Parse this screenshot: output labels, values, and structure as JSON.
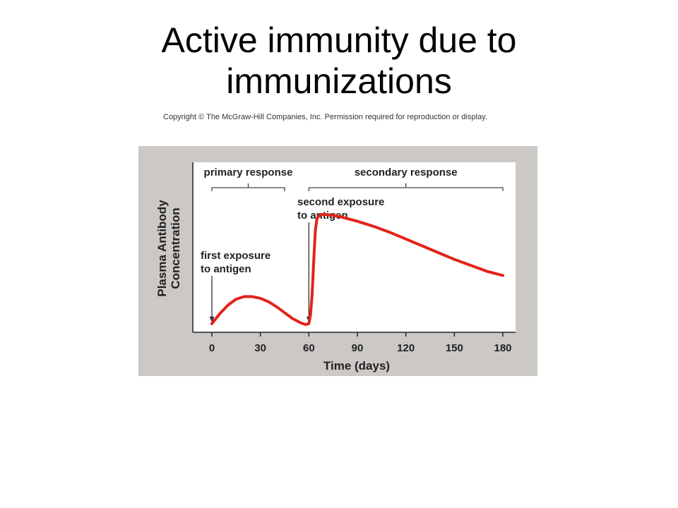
{
  "slide": {
    "title_line1": "Active immunity due to",
    "title_line2": "immunizations",
    "copyright": "Copyright © The McGraw-Hill Companies, Inc. Permission required for reproduction or display."
  },
  "colors": {
    "panel_background": "#cbc8c6",
    "plot_background": "#ffffff",
    "curve": "#e2231a",
    "text": "#222222"
  },
  "chart_data": {
    "type": "line",
    "title": "",
    "xlabel": "Time (days)",
    "ylabel_line1": "Plasma Antibody",
    "ylabel_line2": "Concentration",
    "xlim": [
      -10,
      188
    ],
    "ylim": [
      0,
      100
    ],
    "x_ticks": [
      0,
      30,
      60,
      90,
      120,
      150,
      180
    ],
    "x_tick_labels": [
      "0",
      "30",
      "60",
      "90",
      "120",
      "150",
      "180"
    ],
    "y_ticks_shown": false,
    "grid": false,
    "series": [
      {
        "values_description": "plasma antibody concentration (relative, unlabeled axis)",
        "x": [
          0,
          5,
          10,
          15,
          20,
          25,
          30,
          35,
          40,
          45,
          50,
          55,
          58,
          60,
          61,
          62,
          63,
          64,
          65,
          66,
          68,
          70,
          75,
          80,
          90,
          100,
          110,
          120,
          130,
          140,
          150,
          160,
          170,
          180
        ],
        "y": [
          3,
          9,
          14,
          17.5,
          19,
          19,
          18,
          16,
          13,
          9.5,
          6,
          3.5,
          2.5,
          3,
          8,
          20,
          40,
          58,
          65,
          66.5,
          67.5,
          67.5,
          67,
          66,
          63.5,
          60.5,
          57,
          53,
          49,
          45,
          41,
          37.5,
          34,
          31.5
        ]
      }
    ],
    "brackets": [
      {
        "label": "primary response",
        "x_start": 0,
        "x_end": 45
      },
      {
        "label": "secondary response",
        "x_start": 60,
        "x_end": 180
      }
    ],
    "annotations": [
      {
        "line1": "first exposure",
        "line2": "to antigen",
        "x": 0,
        "y": 3
      },
      {
        "line1": "second exposure",
        "line2": "to antigen",
        "x": 60,
        "y": 3
      }
    ]
  }
}
